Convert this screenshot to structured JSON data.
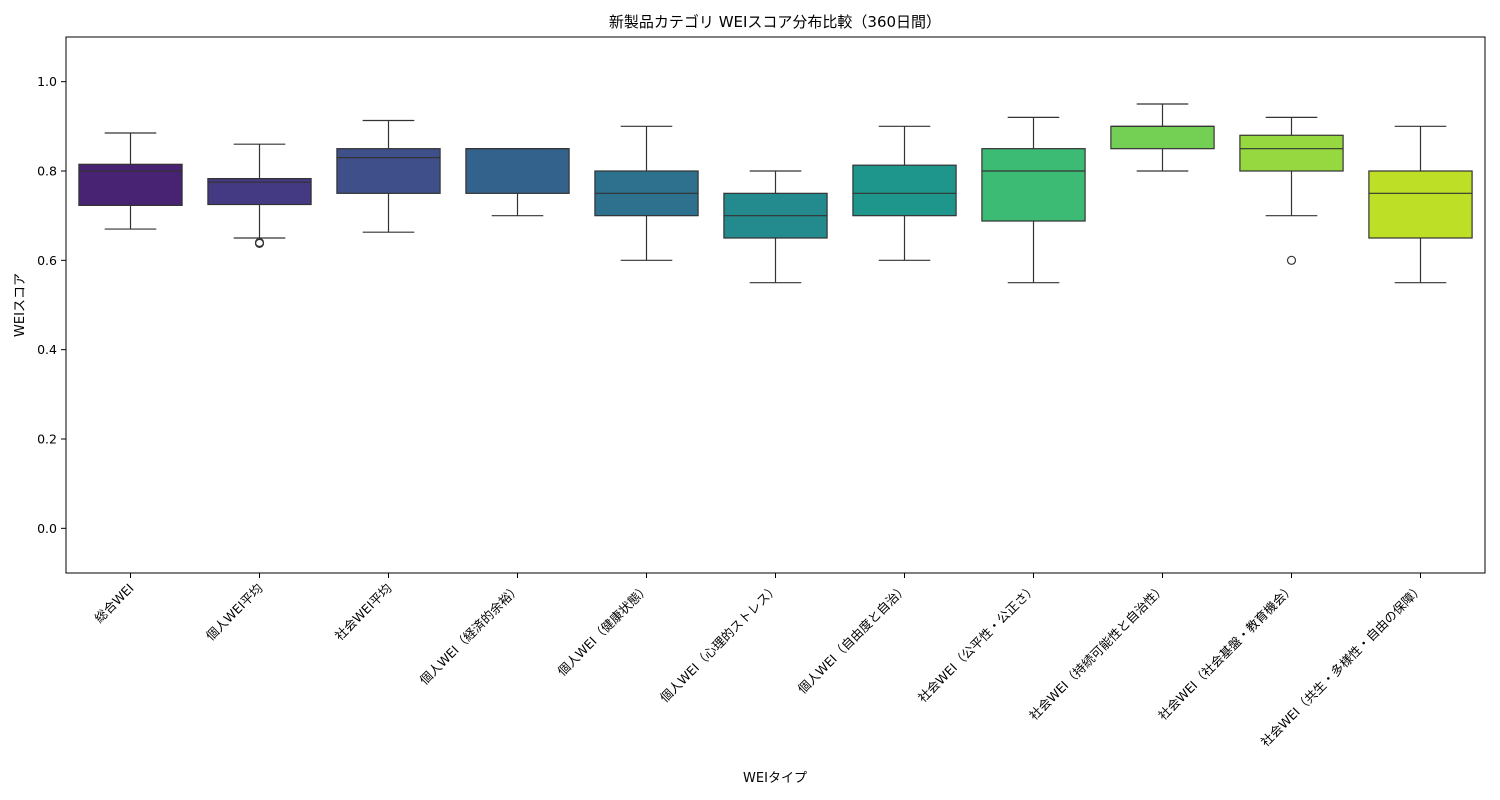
{
  "chart_data": {
    "type": "box",
    "title": "新製品カテゴリ WEIスコア分布比較（360日間）",
    "xlabel": "WEIタイプ",
    "ylabel": "WEIスコア",
    "ylim": [
      -0.1,
      1.1
    ],
    "yticks": [
      "0.0",
      "0.2",
      "0.4",
      "0.6",
      "0.8",
      "1.0"
    ],
    "grid": false,
    "legend": "none",
    "categories": [
      "総合WEI",
      "個人WEI平均",
      "社会WEI平均",
      "個人WEI（経済的余裕）",
      "個人WEI（健康状態）",
      "個人WEI（心理的ストレス）",
      "個人WEI（自由度と自治）",
      "社会WEI（公平性・公正さ）",
      "社会WEI（持続可能性と自治性）",
      "社会WEI（社会基盤・教育機会）",
      "社会WEI（共生・多様性・自由の保障）"
    ],
    "boxes": [
      {
        "whisker_low": 0.67,
        "q1": 0.723,
        "median": 0.8,
        "q3": 0.815,
        "whisker_high": 0.885,
        "outliers": []
      },
      {
        "whisker_low": 0.65,
        "q1": 0.725,
        "median": 0.775,
        "q3": 0.783,
        "whisker_high": 0.86,
        "outliers": [
          0.638,
          0.64
        ]
      },
      {
        "whisker_low": 0.663,
        "q1": 0.75,
        "median": 0.83,
        "q3": 0.85,
        "whisker_high": 0.913,
        "outliers": []
      },
      {
        "whisker_low": 0.7,
        "q1": 0.75,
        "median": 0.85,
        "q3": 0.85,
        "whisker_high": 0.85,
        "outliers": []
      },
      {
        "whisker_low": 0.6,
        "q1": 0.7,
        "median": 0.75,
        "q3": 0.8,
        "whisker_high": 0.9,
        "outliers": []
      },
      {
        "whisker_low": 0.55,
        "q1": 0.65,
        "median": 0.7,
        "q3": 0.75,
        "whisker_high": 0.8,
        "outliers": []
      },
      {
        "whisker_low": 0.6,
        "q1": 0.7,
        "median": 0.75,
        "q3": 0.813,
        "whisker_high": 0.9,
        "outliers": []
      },
      {
        "whisker_low": 0.55,
        "q1": 0.688,
        "median": 0.8,
        "q3": 0.85,
        "whisker_high": 0.92,
        "outliers": []
      },
      {
        "whisker_low": 0.8,
        "q1": 0.85,
        "median": 0.9,
        "q3": 0.9,
        "whisker_high": 0.95,
        "outliers": []
      },
      {
        "whisker_low": 0.7,
        "q1": 0.8,
        "median": 0.85,
        "q3": 0.88,
        "whisker_high": 0.92,
        "outliers": [
          0.6
        ]
      },
      {
        "whisker_low": 0.55,
        "q1": 0.65,
        "median": 0.75,
        "q3": 0.8,
        "whisker_high": 0.9,
        "outliers": []
      }
    ],
    "colors": [
      "#482374",
      "#443a83",
      "#3e4f8a",
      "#33638d",
      "#2d718e",
      "#238a8d",
      "#1f968b",
      "#3cbb75",
      "#73d055",
      "#95d840",
      "#bddf26"
    ]
  }
}
